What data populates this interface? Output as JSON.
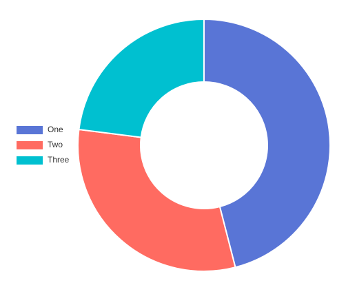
{
  "chart_data": {
    "type": "doughnut",
    "categories": [
      "One",
      "Two",
      "Three"
    ],
    "values": [
      46,
      31,
      23
    ],
    "colors": [
      "#5975d6",
      "#ff6b61",
      "#00c0d0"
    ],
    "legend": "left"
  }
}
